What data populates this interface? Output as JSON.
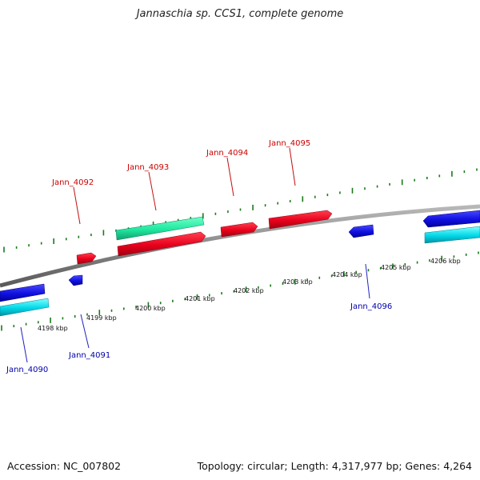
{
  "title": "Jannaschia sp. CCS1, complete genome",
  "footer": {
    "accession": "Accession: NC_007802",
    "summary": "Topology: circular; Length: 4,317,977 bp; Genes: 4,264"
  },
  "scale_labels": [
    "4198 kbp",
    "4199 kbp",
    "4200 kbp",
    "4201 kbp",
    "4202 kbp",
    "4203 kbp",
    "4204 kbp",
    "4205 kbp",
    "4206 kbp"
  ],
  "genes": [
    {
      "name": "Jann_4090",
      "strand": "reverse",
      "color": "#0000cc"
    },
    {
      "name": "Jann_4091",
      "strand": "reverse",
      "color": "#0000cc"
    },
    {
      "name": "Jann_4092",
      "strand": "forward",
      "color": "#cc0000"
    },
    {
      "name": "Jann_4093",
      "strand": "forward",
      "color": "#cc0000"
    },
    {
      "name": "Jann_4094",
      "strand": "forward",
      "color": "#cc0000"
    },
    {
      "name": "Jann_4095",
      "strand": "forward",
      "color": "#cc0000"
    },
    {
      "name": "Jann_4096",
      "strand": "reverse",
      "color": "#0000cc"
    }
  ],
  "colors": {
    "forward_gene": "#e8001c",
    "reverse_gene": "#1010e0",
    "forward_cds": "#20e8a0",
    "reverse_cds": "#00d8e8",
    "ticks": "#1a7a1a",
    "backbone": "#888888"
  }
}
